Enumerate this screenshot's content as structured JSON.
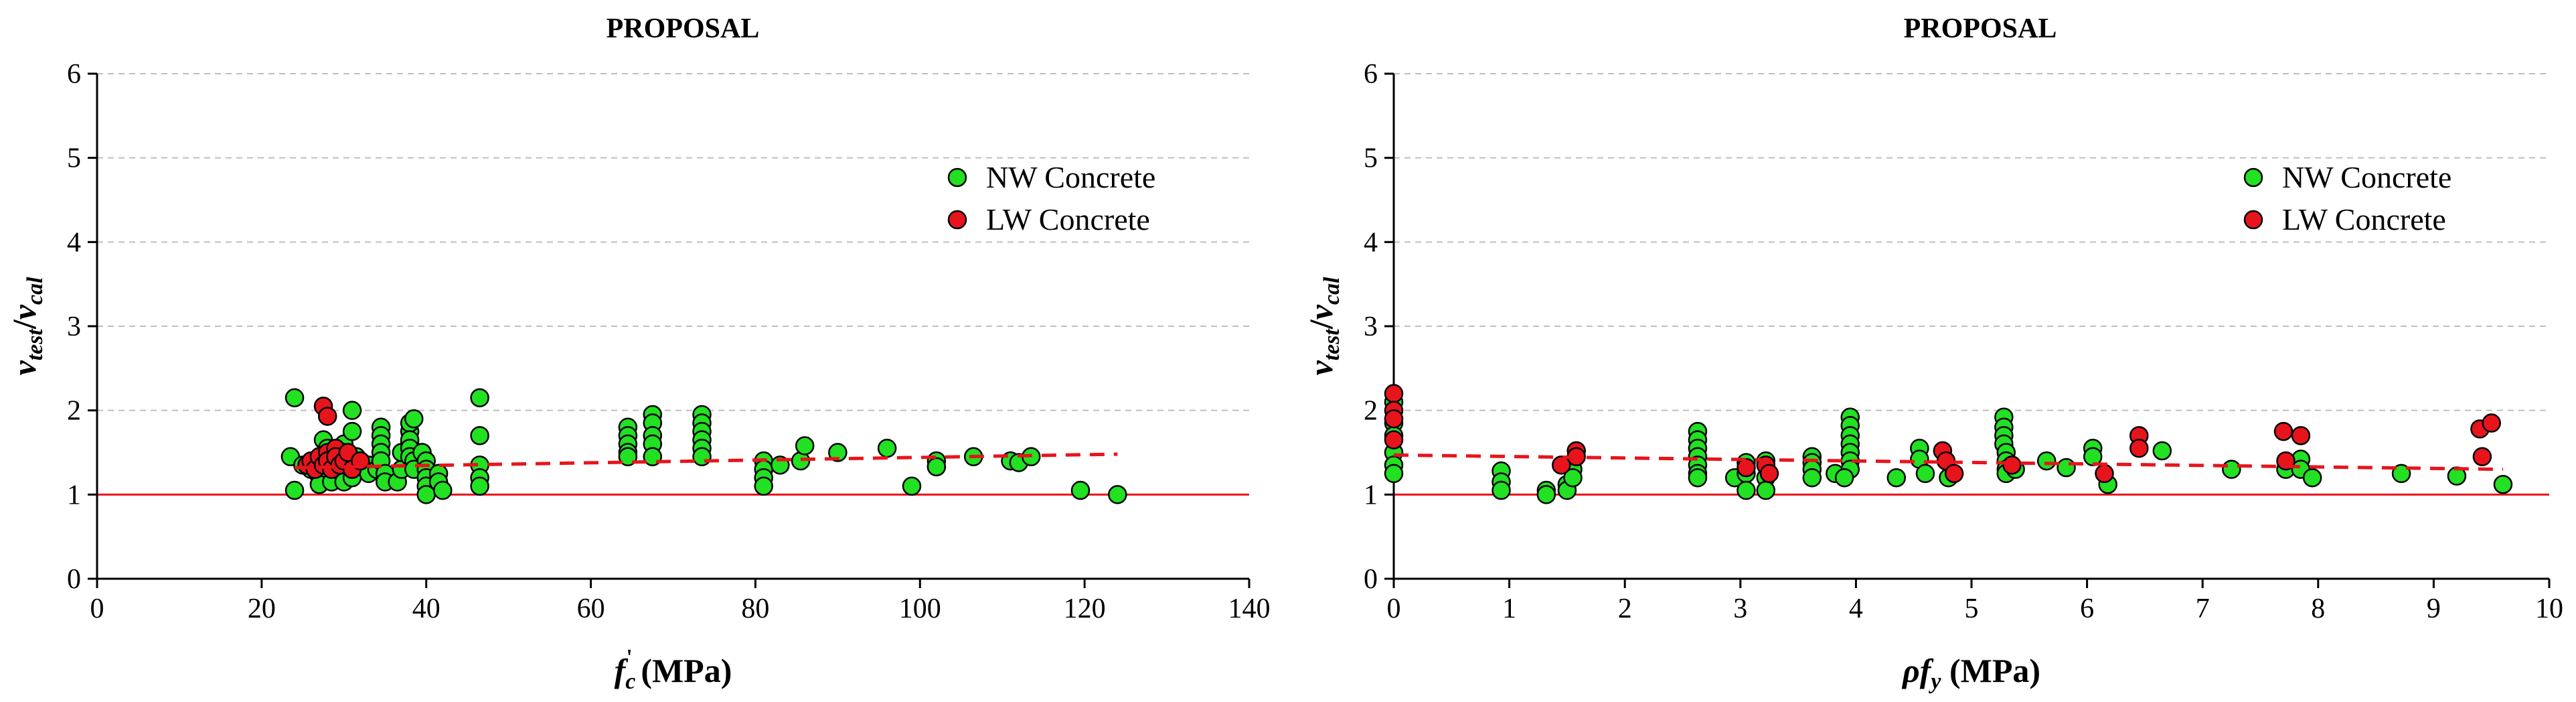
{
  "chart_data": [
    {
      "type": "scatter",
      "title": "PROPOSAL",
      "xlabel": "fc' (MPa)",
      "xlabel_parts": {
        "main": "f",
        "sub": "c",
        "sup": "'",
        "unit": " (MPa)"
      },
      "ylabel": "vtest/vcal",
      "ylabel_parts": {
        "v1": "v",
        "sub1": "test",
        "slash": "/",
        "v2": "v",
        "sub2": "cal"
      },
      "xlim": [
        0,
        140
      ],
      "ylim": [
        0,
        6
      ],
      "xticks": [
        "0",
        "20",
        "40",
        "60",
        "80",
        "100",
        "120",
        "140"
      ],
      "yticks": [
        "0",
        "1",
        "2",
        "3",
        "4",
        "5",
        "6"
      ],
      "grid": "horizontal-dashed",
      "legend_position": "top-right",
      "reference_line": {
        "y": 1,
        "color": "#e8141c"
      },
      "trend_line": {
        "x": [
          24,
          124
        ],
        "y": [
          1.32,
          1.48
        ],
        "color": "#e8141c",
        "style": "dashed"
      },
      "series": [
        {
          "name": "NW Concrete",
          "color": "#22e022",
          "points": [
            [
              24,
              2.15
            ],
            [
              23.5,
              1.45
            ],
            [
              24,
              1.05
            ],
            [
              25,
              1.35
            ],
            [
              26,
              1.3
            ],
            [
              27,
              1.22
            ],
            [
              27,
              1.12
            ],
            [
              27.5,
              1.65
            ],
            [
              28,
              1.55
            ],
            [
              28.5,
              1.15
            ],
            [
              29,
              1.42
            ],
            [
              29.5,
              1.28
            ],
            [
              30,
              1.6
            ],
            [
              30,
              1.5
            ],
            [
              30.5,
              1.35
            ],
            [
              30.5,
              1.25
            ],
            [
              30,
              1.15
            ],
            [
              31,
              2.0
            ],
            [
              31,
              1.75
            ],
            [
              31.5,
              1.45
            ],
            [
              31,
              1.2
            ],
            [
              32,
              1.4
            ],
            [
              33,
              1.35
            ],
            [
              33,
              1.25
            ],
            [
              34,
              1.3
            ],
            [
              34.5,
              1.8
            ],
            [
              34.5,
              1.7
            ],
            [
              34.5,
              1.6
            ],
            [
              34.5,
              1.5
            ],
            [
              34.5,
              1.4
            ],
            [
              35,
              1.25
            ],
            [
              35,
              1.15
            ],
            [
              36.5,
              1.15
            ],
            [
              37,
              1.3
            ],
            [
              37,
              1.5
            ],
            [
              38,
              1.6
            ],
            [
              38,
              1.75
            ],
            [
              38,
              1.85
            ],
            [
              38.5,
              1.9
            ],
            [
              38,
              1.65
            ],
            [
              38,
              1.55
            ],
            [
              38,
              1.45
            ],
            [
              38.5,
              1.4
            ],
            [
              38.5,
              1.3
            ],
            [
              39.5,
              1.5
            ],
            [
              40,
              1.4
            ],
            [
              40,
              1.3
            ],
            [
              40,
              1.2
            ],
            [
              40,
              1.1
            ],
            [
              40,
              1.0
            ],
            [
              41.5,
              1.25
            ],
            [
              41.5,
              1.15
            ],
            [
              42,
              1.05
            ],
            [
              46.5,
              2.15
            ],
            [
              46.5,
              1.7
            ],
            [
              46.5,
              1.35
            ],
            [
              46.5,
              1.2
            ],
            [
              46.5,
              1.1
            ],
            [
              64.5,
              1.8
            ],
            [
              64.5,
              1.7
            ],
            [
              64.5,
              1.6
            ],
            [
              64.5,
              1.5
            ],
            [
              64.5,
              1.45
            ],
            [
              67.5,
              1.95
            ],
            [
              67.5,
              1.85
            ],
            [
              67.5,
              1.7
            ],
            [
              67.5,
              1.6
            ],
            [
              67.5,
              1.45
            ],
            [
              73.5,
              1.95
            ],
            [
              73.5,
              1.85
            ],
            [
              73.5,
              1.75
            ],
            [
              73.5,
              1.65
            ],
            [
              73.5,
              1.55
            ],
            [
              73.5,
              1.45
            ],
            [
              81,
              1.4
            ],
            [
              81,
              1.3
            ],
            [
              81,
              1.2
            ],
            [
              81,
              1.1
            ],
            [
              83,
              1.35
            ],
            [
              85.5,
              1.4
            ],
            [
              86,
              1.58
            ],
            [
              90,
              1.5
            ],
            [
              96,
              1.55
            ],
            [
              99,
              1.1
            ],
            [
              102,
              1.4
            ],
            [
              102,
              1.33
            ],
            [
              106.5,
              1.45
            ],
            [
              111,
              1.4
            ],
            [
              112,
              1.38
            ],
            [
              113.5,
              1.45
            ],
            [
              119.5,
              1.05
            ],
            [
              124,
              1.0
            ]
          ]
        },
        {
          "name": "LW Concrete",
          "color": "#e8141c",
          "points": [
            [
              25.5,
              1.35
            ],
            [
              26,
              1.4
            ],
            [
              26.5,
              1.3
            ],
            [
              27,
              1.45
            ],
            [
              27.5,
              2.05
            ],
            [
              27.5,
              1.35
            ],
            [
              28,
              1.93
            ],
            [
              28,
              1.5
            ],
            [
              28,
              1.4
            ],
            [
              28.5,
              1.3
            ],
            [
              29,
              1.55
            ],
            [
              29,
              1.45
            ],
            [
              29.5,
              1.35
            ],
            [
              30,
              1.4
            ],
            [
              30.5,
              1.5
            ],
            [
              31,
              1.3
            ],
            [
              32,
              1.4
            ]
          ]
        }
      ]
    },
    {
      "type": "scatter",
      "title": "PROPOSAL",
      "xlabel": "ρfy (MPa)",
      "xlabel_parts": {
        "main": "ρf",
        "sub": "y",
        "unit": " (MPa)"
      },
      "ylabel": "vtest/vcal",
      "ylabel_parts": {
        "v1": "v",
        "sub1": "test",
        "slash": "/",
        "v2": "v",
        "sub2": "cal"
      },
      "xlim": [
        0,
        10
      ],
      "ylim": [
        0,
        6
      ],
      "xticks": [
        "0",
        "1",
        "2",
        "3",
        "4",
        "5",
        "6",
        "7",
        "8",
        "9",
        "10"
      ],
      "yticks": [
        "0",
        "1",
        "2",
        "3",
        "4",
        "5",
        "6"
      ],
      "grid": "horizontal-dashed",
      "legend_position": "top-right",
      "reference_line": {
        "y": 1,
        "color": "#e8141c"
      },
      "trend_line": {
        "x": [
          0,
          9.6
        ],
        "y": [
          1.47,
          1.3
        ],
        "color": "#e8141c",
        "style": "dashed"
      },
      "series": [
        {
          "name": "NW Concrete",
          "color": "#22e022",
          "points": [
            [
              0,
              2.1
            ],
            [
              0,
              1.85
            ],
            [
              0,
              1.7
            ],
            [
              0,
              1.5
            ],
            [
              0,
              1.35
            ],
            [
              0,
              1.25
            ],
            [
              0.93,
              1.28
            ],
            [
              0.93,
              1.15
            ],
            [
              0.93,
              1.05
            ],
            [
              1.32,
              1.05
            ],
            [
              1.32,
              1.0
            ],
            [
              1.5,
              1.12
            ],
            [
              1.5,
              1.05
            ],
            [
              1.55,
              1.3
            ],
            [
              1.55,
              1.2
            ],
            [
              2.63,
              1.75
            ],
            [
              2.63,
              1.65
            ],
            [
              2.63,
              1.55
            ],
            [
              2.63,
              1.45
            ],
            [
              2.63,
              1.35
            ],
            [
              2.63,
              1.25
            ],
            [
              2.63,
              1.2
            ],
            [
              2.95,
              1.2
            ],
            [
              3.05,
              1.38
            ],
            [
              3.05,
              1.25
            ],
            [
              3.05,
              1.05
            ],
            [
              3.22,
              1.4
            ],
            [
              3.22,
              1.2
            ],
            [
              3.22,
              1.05
            ],
            [
              3.62,
              1.45
            ],
            [
              3.62,
              1.38
            ],
            [
              3.62,
              1.3
            ],
            [
              3.62,
              1.2
            ],
            [
              3.82,
              1.25
            ],
            [
              3.95,
              1.92
            ],
            [
              3.95,
              1.82
            ],
            [
              3.95,
              1.7
            ],
            [
              3.95,
              1.6
            ],
            [
              3.95,
              1.5
            ],
            [
              3.95,
              1.4
            ],
            [
              3.95,
              1.3
            ],
            [
              3.9,
              1.2
            ],
            [
              4.35,
              1.2
            ],
            [
              4.55,
              1.55
            ],
            [
              4.55,
              1.42
            ],
            [
              4.6,
              1.25
            ],
            [
              4.8,
              1.2
            ],
            [
              5.28,
              1.92
            ],
            [
              5.28,
              1.8
            ],
            [
              5.28,
              1.7
            ],
            [
              5.28,
              1.6
            ],
            [
              5.3,
              1.5
            ],
            [
              5.3,
              1.4
            ],
            [
              5.3,
              1.3
            ],
            [
              5.3,
              1.25
            ],
            [
              5.38,
              1.3
            ],
            [
              5.65,
              1.4
            ],
            [
              5.82,
              1.32
            ],
            [
              6.05,
              1.55
            ],
            [
              6.05,
              1.45
            ],
            [
              6.18,
              1.12
            ],
            [
              6.65,
              1.52
            ],
            [
              7.25,
              1.3
            ],
            [
              7.72,
              1.3
            ],
            [
              7.85,
              1.42
            ],
            [
              7.85,
              1.3
            ],
            [
              7.95,
              1.2
            ],
            [
              8.72,
              1.25
            ],
            [
              9.2,
              1.22
            ],
            [
              9.6,
              1.12
            ]
          ]
        },
        {
          "name": "LW Concrete",
          "color": "#e8141c",
          "points": [
            [
              0,
              2.2
            ],
            [
              0,
              2.0
            ],
            [
              0,
              1.9
            ],
            [
              0,
              1.65
            ],
            [
              1.45,
              1.35
            ],
            [
              1.58,
              1.52
            ],
            [
              1.58,
              1.45
            ],
            [
              3.05,
              1.32
            ],
            [
              3.22,
              1.35
            ],
            [
              3.25,
              1.25
            ],
            [
              4.75,
              1.52
            ],
            [
              4.78,
              1.4
            ],
            [
              4.85,
              1.25
            ],
            [
              5.35,
              1.35
            ],
            [
              6.15,
              1.25
            ],
            [
              6.45,
              1.7
            ],
            [
              6.45,
              1.55
            ],
            [
              7.7,
              1.75
            ],
            [
              7.72,
              1.4
            ],
            [
              7.85,
              1.7
            ],
            [
              9.4,
              1.78
            ],
            [
              9.5,
              1.85
            ],
            [
              9.42,
              1.45
            ]
          ]
        }
      ]
    }
  ]
}
